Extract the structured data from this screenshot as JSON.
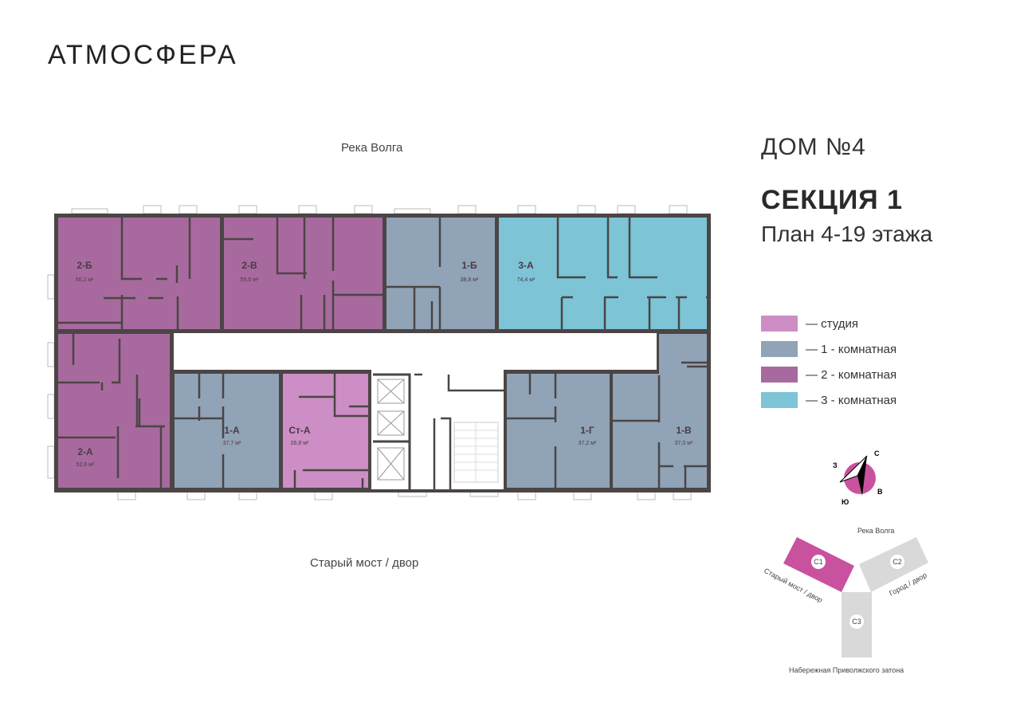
{
  "brand": {
    "logo": "АТМОСФЕРА"
  },
  "header": {
    "house": "ДОМ №4",
    "section": "СЕКЦИЯ 1",
    "floors": "План 4-19 этажа"
  },
  "orientation": {
    "top": "Река Волга",
    "bottom": "Старый мост / двор"
  },
  "colors": {
    "studio": "#cc8ec4",
    "one_room": "#91a3b6",
    "two_room": "#a86a9e",
    "three_room": "#7cc4d6",
    "walls": "#4b4545",
    "section_active": "#c9529f",
    "section_inactive": "#d9d9d9"
  },
  "legend": [
    {
      "label": "— студия",
      "color": "#cc8ec4"
    },
    {
      "label": "— 1 - комнатная",
      "color": "#91a3b6"
    },
    {
      "label": "— 2 - комнатная",
      "color": "#a86a9e"
    },
    {
      "label": "— 3 - комнатная",
      "color": "#7cc4d6"
    }
  ],
  "apartments": [
    {
      "name": "2-Б",
      "area": "56,2 м²",
      "type": "two_room"
    },
    {
      "name": "2-В",
      "area": "55,5 м²",
      "type": "two_room"
    },
    {
      "name": "1-Б",
      "area": "38,8 м²",
      "type": "one_room"
    },
    {
      "name": "3-А",
      "area": "74,4 м²",
      "type": "three_room"
    },
    {
      "name": "2-А",
      "area": "52,6 м²",
      "type": "two_room"
    },
    {
      "name": "1-А",
      "area": "37,7 м²",
      "type": "one_room"
    },
    {
      "name": "Ст-А",
      "area": "26,8 м²",
      "type": "studio"
    },
    {
      "name": "1-Г",
      "area": "37,2 м²",
      "type": "one_room"
    },
    {
      "name": "1-В",
      "area": "37,0 м²",
      "type": "one_room"
    }
  ],
  "compass": {
    "n": "С",
    "s": "Ю",
    "e": "В",
    "w": "З"
  },
  "site_map": {
    "top": "Река Волга",
    "left": "Старый мост / двор",
    "right": "Город / двор",
    "bottom": "Набережная Приволжского затона",
    "sections": [
      "С1",
      "С2",
      "С3"
    ]
  }
}
